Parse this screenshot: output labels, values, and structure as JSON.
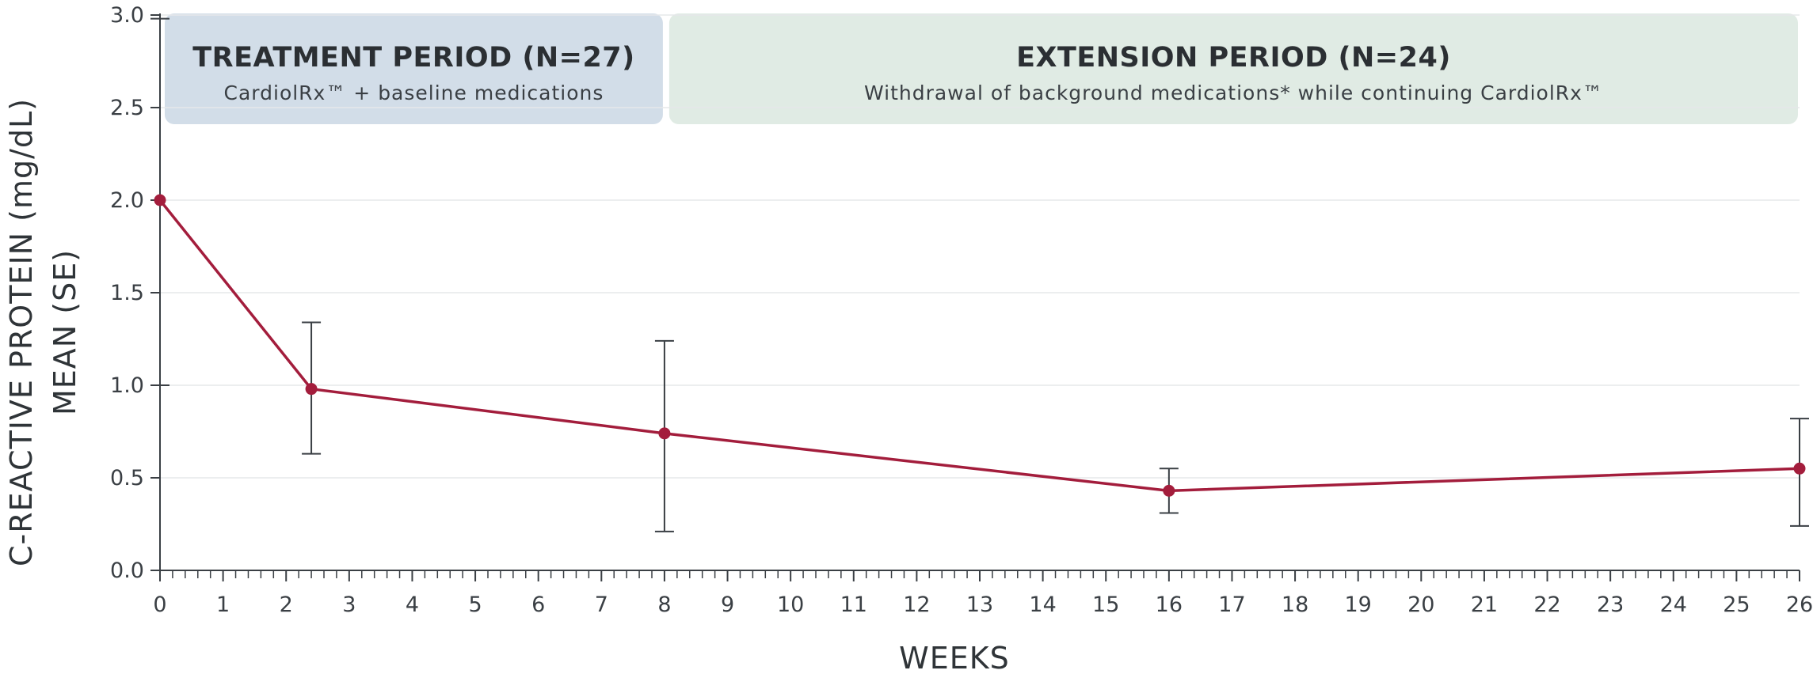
{
  "chart_data": {
    "type": "line",
    "xlabel": "WEEKS",
    "ylabel_line1": "C-REACTIVE PROTEIN (mg/dL)",
    "ylabel_line2": "MEAN (SE)",
    "xlim": [
      0,
      26
    ],
    "ylim": [
      0,
      3.0
    ],
    "x_tick_labels": [
      "0",
      "1",
      "2",
      "3",
      "4",
      "5",
      "6",
      "7",
      "8",
      "9",
      "10",
      "11",
      "12",
      "13",
      "14",
      "15",
      "16",
      "17",
      "18",
      "19",
      "20",
      "21",
      "22",
      "23",
      "24",
      "25",
      "26"
    ],
    "y_ticks": [
      0.0,
      0.5,
      1.0,
      1.5,
      2.0,
      2.5,
      3.0
    ],
    "y_tick_labels": [
      "0.0",
      "0.5",
      "1.0",
      "1.5",
      "2.0",
      "2.5",
      "3.0"
    ],
    "grid": "horizontal",
    "periods": [
      {
        "title": "TREATMENT PERIOD (N=27)",
        "subtitle": "CardiolRx™ + baseline medications",
        "x_start": 0,
        "x_end": 8,
        "color": "#d2dde8"
      },
      {
        "title": "EXTENSION PERIOD (N=24)",
        "subtitle": "Withdrawal of background medications* while continuing CardiolRx™",
        "x_start": 8,
        "x_end": 26,
        "color": "#e0ebe4"
      }
    ],
    "series": [
      {
        "color": "#a31d3c",
        "points": [
          {
            "x": 0,
            "y": 2.0,
            "err_low": 1.0,
            "err_high": 2.98
          },
          {
            "x": 2.4,
            "y": 0.98,
            "err_low": 0.63,
            "err_high": 1.34
          },
          {
            "x": 8,
            "y": 0.74,
            "err_low": 0.21,
            "err_high": 1.24
          },
          {
            "x": 16,
            "y": 0.43,
            "err_low": 0.31,
            "err_high": 0.55
          },
          {
            "x": 26,
            "y": 0.55,
            "err_low": 0.24,
            "err_high": 0.82
          }
        ]
      }
    ]
  }
}
